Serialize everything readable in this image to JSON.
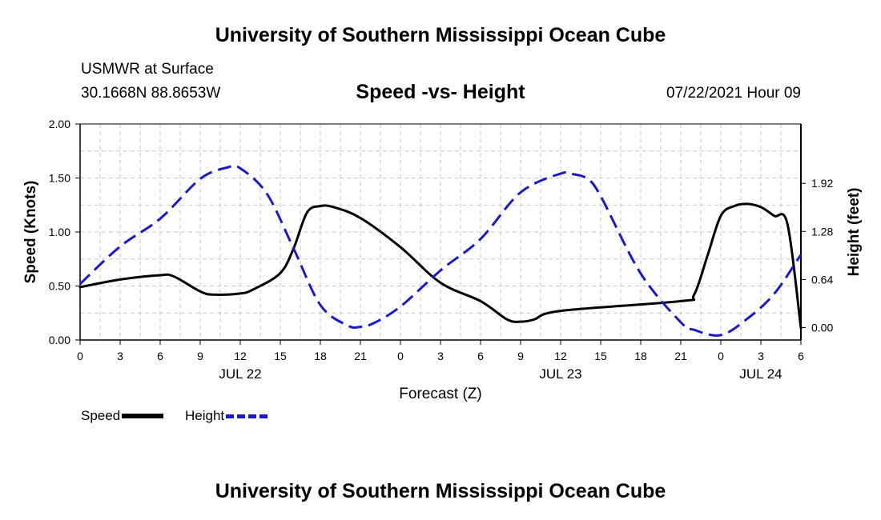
{
  "header": {
    "title": "University of Southern Mississippi Ocean Cube",
    "station": "USMWR at Surface",
    "coords": "30.1668N  88.8653W",
    "chart_title": "Speed -vs- Height",
    "datetime": "07/22/2021 Hour 09"
  },
  "footer": {
    "title": "University of Southern Mississippi Ocean Cube"
  },
  "legend": {
    "speed_label": "Speed",
    "height_label": "Height"
  },
  "colors": {
    "speed": "#000000",
    "height": "#1a1acd",
    "grid": "#c8c8c8"
  },
  "chart_data": {
    "type": "line",
    "title": "Speed -vs- Height",
    "xlabel": "Forecast (Z)",
    "ylabel": "Speed (Knots)",
    "y2label": "Height (feet)",
    "xlim": [
      0,
      54
    ],
    "ylim": [
      0,
      2.0
    ],
    "y2lim": [
      -0.165,
      2.71
    ],
    "x_ticks": [
      0,
      3,
      6,
      9,
      12,
      15,
      18,
      21,
      24,
      27,
      30,
      33,
      36,
      39,
      42,
      45,
      48,
      51,
      54
    ],
    "x_tick_labels": [
      "0",
      "3",
      "6",
      "9",
      "12",
      "15",
      "18",
      "21",
      "0",
      "3",
      "6",
      "9",
      "12",
      "15",
      "18",
      "21",
      "0",
      "3",
      "6"
    ],
    "date_labels": [
      {
        "x": 12,
        "label": "JUL 22"
      },
      {
        "x": 36,
        "label": "JUL 23"
      },
      {
        "x": 51,
        "label": "JUL 24"
      }
    ],
    "y_ticks": [
      0.0,
      0.5,
      1.0,
      1.5,
      2.0
    ],
    "y_tick_labels": [
      "0.00",
      "0.50",
      "1.00",
      "1.50",
      "2.00"
    ],
    "y2_ticks": [
      0.0,
      0.64,
      1.28,
      1.92
    ],
    "y2_tick_labels": [
      "0.00",
      "0.64",
      "1.28",
      "1.92"
    ],
    "series": [
      {
        "name": "Speed",
        "axis": "left",
        "style": "solid",
        "x": [
          0,
          3,
          6,
          7,
          9,
          10,
          12,
          13,
          15,
          16,
          17,
          18,
          19,
          21,
          24,
          27,
          30,
          32,
          33,
          34,
          36,
          45,
          46,
          47,
          48,
          49,
          50,
          51,
          52,
          53,
          54
        ],
        "values": [
          0.49,
          0.56,
          0.6,
          0.59,
          0.45,
          0.42,
          0.43,
          0.47,
          0.62,
          0.85,
          1.18,
          1.24,
          1.23,
          1.13,
          0.86,
          0.53,
          0.36,
          0.19,
          0.17,
          0.19,
          0.27,
          0.36,
          0.42,
          0.78,
          1.15,
          1.24,
          1.26,
          1.23,
          1.15,
          1.07,
          0.11
        ]
      },
      {
        "name": "Height",
        "axis": "right",
        "style": "dashed",
        "x": [
          0,
          3,
          6,
          9,
          11,
          12,
          14,
          16,
          18,
          20,
          21,
          22,
          24,
          27,
          30,
          33,
          36,
          37,
          38,
          39,
          42,
          45,
          46,
          48,
          50,
          52,
          54
        ],
        "values": [
          0.58,
          1.08,
          1.45,
          1.98,
          2.13,
          2.12,
          1.78,
          1.05,
          0.3,
          0.03,
          0.01,
          0.06,
          0.28,
          0.76,
          1.18,
          1.8,
          2.05,
          2.04,
          1.98,
          1.75,
          0.72,
          0.07,
          -0.03,
          -0.1,
          0.12,
          0.45,
          0.97
        ]
      }
    ]
  }
}
